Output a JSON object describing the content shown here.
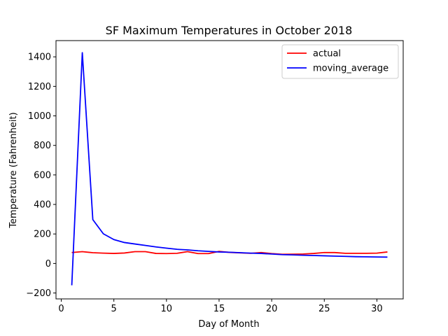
{
  "chart_data": {
    "type": "line",
    "title": "SF Maximum Temperatures in October 2018",
    "xlabel": "Day of Month",
    "ylabel": "Temperature (Fahrenheit)",
    "xlim": [
      -0.5,
      32.5
    ],
    "ylim": [
      -240,
      1510
    ],
    "xticks": [
      0,
      5,
      10,
      15,
      20,
      25,
      30
    ],
    "yticks": [
      -200,
      0,
      200,
      400,
      600,
      800,
      1000,
      1200,
      1400
    ],
    "legend_position": "top-right",
    "x": [
      1,
      2,
      3,
      4,
      5,
      6,
      7,
      8,
      9,
      10,
      11,
      12,
      13,
      14,
      15,
      16,
      17,
      18,
      19,
      20,
      21,
      22,
      23,
      24,
      25,
      26,
      27,
      28,
      29,
      30,
      31
    ],
    "series": [
      {
        "name": "actual",
        "color": "#ff0000",
        "values": [
          74,
          80,
          73,
          70,
          68,
          71,
          80,
          80,
          68,
          67,
          69,
          80,
          67,
          67,
          82,
          75,
          72,
          69,
          74,
          67,
          62,
          63,
          64,
          68,
          74,
          74,
          69,
          69,
          69,
          70,
          78
        ]
      },
      {
        "name": "moving_average",
        "color": "#0000ff",
        "values": [
          -148,
          1428,
          297,
          201,
          162,
          142,
          132,
          122,
          112,
          104,
          96,
          92,
          86,
          82,
          78,
          76,
          73,
          70,
          68,
          64,
          60,
          58,
          56,
          54,
          52,
          50,
          48,
          46,
          45,
          44,
          43
        ]
      }
    ]
  }
}
